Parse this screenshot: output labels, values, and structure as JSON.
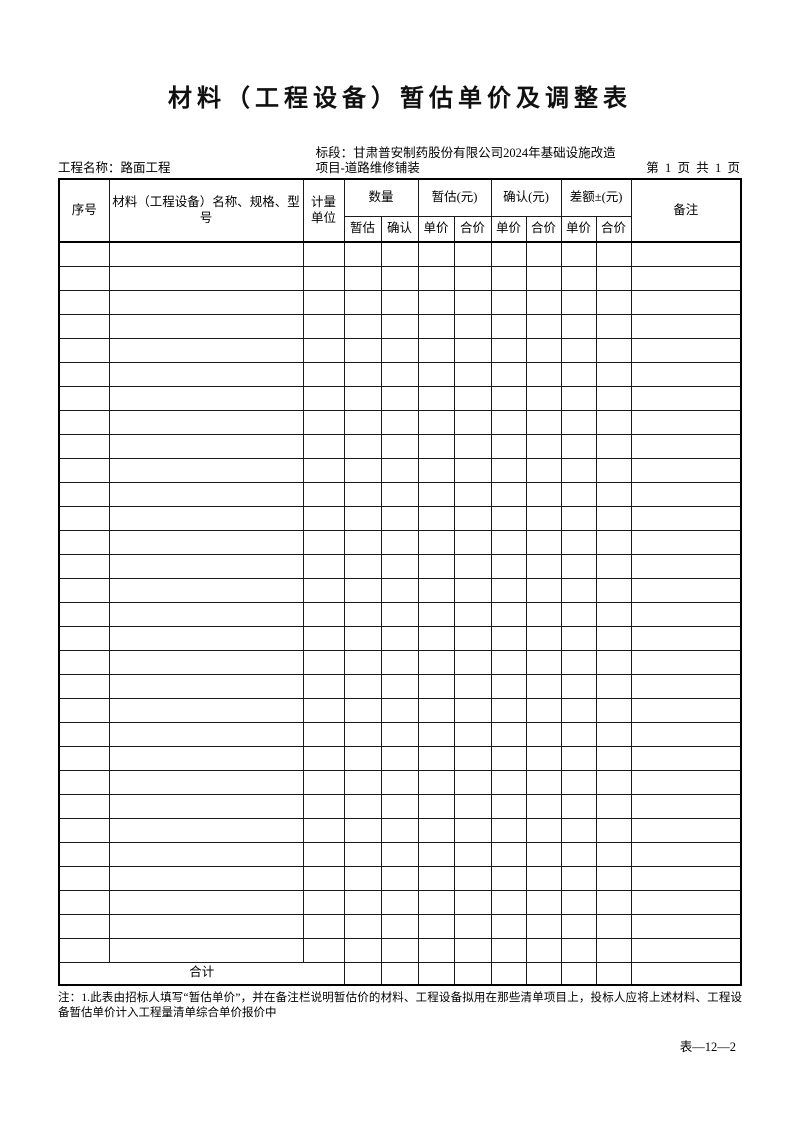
{
  "page": {
    "title": "材料（工程设备）暂估单价及调整表",
    "form_code": "表—12—2"
  },
  "info": {
    "project_name": "工程名称：路面工程",
    "section": "标段：甘肃普安制药股份有限公司2024年基础设施改造项目-道路维修铺装",
    "page_info": "第  1  页  共  1  页"
  },
  "table": {
    "header": {
      "seq": "序号",
      "name_spec_model": "材料（工程设备）名称、规格、型号",
      "unit": "计量单位",
      "quantity_group": "数量",
      "provisional_group": "暂估(元)",
      "confirmed_group": "确认(元)",
      "difference_group": "差额±(元)",
      "remarks": "备注",
      "sub": [
        "暂估",
        "确认",
        "单价",
        "合价",
        "单价",
        "合价",
        "单价",
        "合价"
      ]
    },
    "empty_row_count": 30,
    "columns_per_row": 12,
    "total_label": "合计"
  },
  "note": "注：1.此表由招标人填写“暂估单价”，并在备注栏说明暂估价的材料、工程设备拟用在那些清单项目上，投标人应将上述材料、工程设备暂估单价计入工程量清单综合单价报价中"
}
